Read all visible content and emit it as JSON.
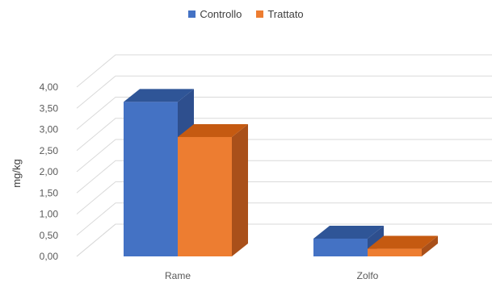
{
  "chart_data": {
    "type": "bar",
    "style": "3d-clustered-column",
    "categories": [
      "Rame",
      "Zolfo"
    ],
    "series": [
      {
        "name": "Controllo",
        "values": [
          3.65,
          0.42
        ],
        "color": "#4472C4",
        "top": "#2F5597",
        "side": "#2E4F8E"
      },
      {
        "name": "Trattato",
        "values": [
          2.82,
          0.18
        ],
        "color": "#ED7D31",
        "top": "#C55A11",
        "side": "#A9501A"
      }
    ],
    "ylabel": "mg/kg",
    "ylim": [
      0,
      4
    ],
    "yticks": [
      "0,00",
      "0,50",
      "1,00",
      "1,50",
      "2,00",
      "2,50",
      "3,00",
      "3,50",
      "4,00"
    ],
    "legend_position": "top",
    "grid": true
  }
}
